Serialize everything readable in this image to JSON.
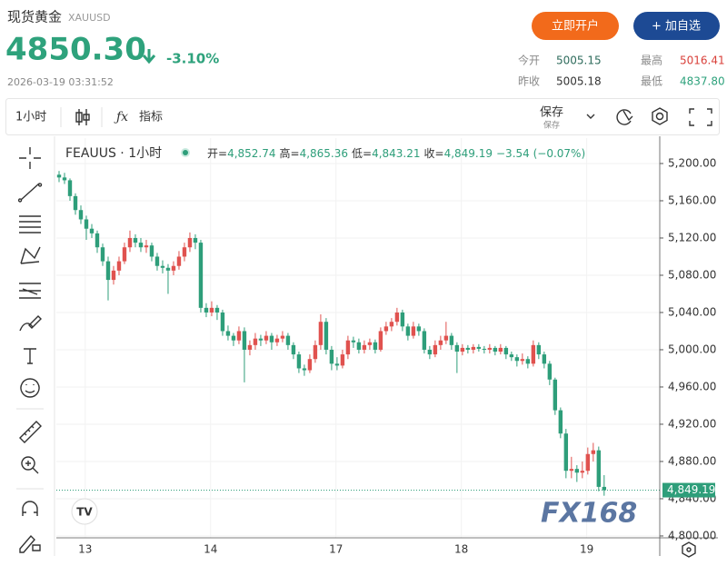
{
  "header": {
    "name": "现货黄金",
    "symbol": "XAUUSD",
    "price": "4850.30",
    "change": "-3.10%",
    "time": "2026-03-19 03:31:52",
    "buttons": [
      "立即开户",
      "+ 加自选"
    ],
    "stats": [
      {
        "label": "今开",
        "value": "5005.15"
      },
      {
        "label": "最高",
        "value": "5016.41"
      },
      {
        "label": "昨收",
        "value": "5005.18"
      },
      {
        "label": "最低",
        "value": "4837.80"
      }
    ]
  },
  "toolbar": {
    "interval": "1小时",
    "indicators": "指标",
    "save": "保存",
    "save_sub": "保存"
  },
  "chart_data": {
    "type": "candlestick",
    "title": "FEAUUS · 1小时",
    "ohlc_legend": [
      {
        "key": "开=",
        "value": "4,852.74"
      },
      {
        "key": "高=",
        "value": "4,865.36"
      },
      {
        "key": "低=",
        "value": "4,843.21"
      },
      {
        "key": "收=",
        "value": "4,849.19"
      }
    ],
    "change": "−3.54 (−0.07%)",
    "up_color": "#e0524f",
    "down_color": "#2e9e7a",
    "grid": true,
    "watermark": "FX168",
    "last_price": {
      "value": 4849.19,
      "label": "4,849.19"
    },
    "xlim": [
      -0.5,
      110.2
    ],
    "xticks": [
      {
        "value": 4.8,
        "label": "13"
      },
      {
        "value": 27.8,
        "label": "14"
      },
      {
        "value": 50.8,
        "label": "17"
      },
      {
        "value": 73.8,
        "label": "18"
      },
      {
        "value": 96.8,
        "label": "19"
      }
    ],
    "ylim": [
      4798,
      5227.3
    ],
    "yticks": [
      {
        "value": 5200,
        "label": "5,200.00"
      },
      {
        "value": 5160,
        "label": "5,160.00"
      },
      {
        "value": 5120,
        "label": "5,120.00"
      },
      {
        "value": 5080,
        "label": "5,080.00"
      },
      {
        "value": 5040,
        "label": "5,040.00"
      },
      {
        "value": 5000,
        "label": "5,000.00"
      },
      {
        "value": 4960,
        "label": "4,960.00"
      },
      {
        "value": 4920,
        "label": "4,920.00"
      },
      {
        "value": 4880,
        "label": "4,880.00"
      },
      {
        "value": 4840,
        "label": "4,840.00"
      },
      {
        "value": 4800,
        "label": "4,800.00"
      }
    ],
    "candles": [
      [
        5188,
        5192,
        5180,
        5185
      ],
      [
        5185,
        5190,
        5178,
        5182
      ],
      [
        5182,
        5184,
        5160,
        5165
      ],
      [
        5165,
        5168,
        5145,
        5150
      ],
      [
        5150,
        5155,
        5135,
        5140
      ],
      [
        5140,
        5144,
        5118,
        5130
      ],
      [
        5130,
        5135,
        5120,
        5125
      ],
      [
        5125,
        5128,
        5104,
        5110
      ],
      [
        5110,
        5114,
        5090,
        5095
      ],
      [
        5095,
        5100,
        5053,
        5075
      ],
      [
        5075,
        5090,
        5070,
        5085
      ],
      [
        5085,
        5100,
        5080,
        5095
      ],
      [
        5095,
        5115,
        5092,
        5110
      ],
      [
        5110,
        5128,
        5105,
        5120
      ],
      [
        5120,
        5124,
        5110,
        5115
      ],
      [
        5115,
        5120,
        5105,
        5110
      ],
      [
        5110,
        5118,
        5104,
        5112
      ],
      [
        5112,
        5115,
        5095,
        5100
      ],
      [
        5100,
        5104,
        5085,
        5090
      ],
      [
        5090,
        5096,
        5082,
        5088
      ],
      [
        5088,
        5092,
        5060,
        5085
      ],
      [
        5085,
        5095,
        5080,
        5090
      ],
      [
        5090,
        5106,
        5086,
        5100
      ],
      [
        5100,
        5115,
        5095,
        5110
      ],
      [
        5110,
        5126,
        5105,
        5120
      ],
      [
        5120,
        5124,
        5108,
        5115
      ],
      [
        5115,
        5118,
        5040,
        5045
      ],
      [
        5045,
        5050,
        5035,
        5040
      ],
      [
        5040,
        5052,
        5036,
        5045
      ],
      [
        5045,
        5048,
        5032,
        5040
      ],
      [
        5040,
        5043,
        5015,
        5020
      ],
      [
        5020,
        5026,
        5010,
        5015
      ],
      [
        5015,
        5018,
        5004,
        5010
      ],
      [
        5010,
        5025,
        5006,
        5020
      ],
      [
        5020,
        5024,
        4965,
        5000
      ],
      [
        5000,
        5010,
        4994,
        5005
      ],
      [
        5005,
        5018,
        5000,
        5012
      ],
      [
        5012,
        5016,
        5004,
        5010
      ],
      [
        5010,
        5020,
        5006,
        5015
      ],
      [
        5015,
        5018,
        5000,
        5008
      ],
      [
        5008,
        5016,
        5004,
        5012
      ],
      [
        5012,
        5020,
        5008,
        5015
      ],
      [
        5015,
        5018,
        5000,
        5005
      ],
      [
        5005,
        5008,
        4990,
        4995
      ],
      [
        4995,
        4998,
        4975,
        4980
      ],
      [
        4980,
        4984,
        4972,
        4978
      ],
      [
        4978,
        4995,
        4975,
        4990
      ],
      [
        4990,
        5010,
        4986,
        5005
      ],
      [
        5005,
        5038,
        5000,
        5030
      ],
      [
        5030,
        5034,
        4995,
        5000
      ],
      [
        5000,
        5004,
        4978,
        4985
      ],
      [
        4985,
        4992,
        4978,
        4983
      ],
      [
        4983,
        5000,
        4980,
        4995
      ],
      [
        4995,
        5015,
        4990,
        5010
      ],
      [
        5010,
        5014,
        5002,
        5008
      ],
      [
        5008,
        5012,
        4996,
        5000
      ],
      [
        5000,
        5010,
        4996,
        5005
      ],
      [
        5005,
        5012,
        5000,
        5008
      ],
      [
        5008,
        5011,
        4996,
        5000
      ],
      [
        5000,
        5024,
        4998,
        5020
      ],
      [
        5020,
        5030,
        5016,
        5025
      ],
      [
        5025,
        5034,
        5020,
        5030
      ],
      [
        5030,
        5045,
        5026,
        5040
      ],
      [
        5040,
        5043,
        5020,
        5025
      ],
      [
        5025,
        5028,
        5010,
        5015
      ],
      [
        5015,
        5030,
        5012,
        5025
      ],
      [
        5025,
        5028,
        5015,
        5020
      ],
      [
        5020,
        5023,
        4996,
        5000
      ],
      [
        5000,
        5004,
        4990,
        4995
      ],
      [
        4995,
        5010,
        4992,
        5005
      ],
      [
        5005,
        5015,
        5000,
        5010
      ],
      [
        5010,
        5030,
        5006,
        5015
      ],
      [
        5015,
        5018,
        5000,
        5005
      ],
      [
        5005,
        5008,
        4975,
        4998
      ],
      [
        4998,
        5006,
        4994,
        5002
      ],
      [
        5002,
        5005,
        4996,
        5000
      ],
      [
        5000,
        5006,
        4996,
        5003
      ],
      [
        5003,
        5006,
        4998,
        5001
      ],
      [
        5001,
        5004,
        4996,
        5000
      ],
      [
        5000,
        5006,
        4996,
        5002
      ],
      [
        5002,
        5004,
        4994,
        4998
      ],
      [
        4998,
        5006,
        4995,
        5002
      ],
      [
        5002,
        5004,
        4990,
        4995
      ],
      [
        4995,
        4998,
        4988,
        4992
      ],
      [
        4992,
        4995,
        4982,
        4988
      ],
      [
        4988,
        4996,
        4984,
        4990
      ],
      [
        4990,
        4993,
        4980,
        4985
      ],
      [
        4985,
        5010,
        4982,
        5005
      ],
      [
        5005,
        5008,
        4990,
        4995
      ],
      [
        4995,
        4998,
        4980,
        4985
      ],
      [
        4985,
        4988,
        4962,
        4968
      ],
      [
        4968,
        4970,
        4930,
        4935
      ],
      [
        4935,
        4938,
        4905,
        4910
      ],
      [
        4910,
        4915,
        4862,
        4870
      ],
      [
        4870,
        4885,
        4862,
        4872
      ],
      [
        4872,
        4876,
        4858,
        4868
      ],
      [
        4868,
        4880,
        4862,
        4870
      ],
      [
        4870,
        4895,
        4866,
        4888
      ],
      [
        4888,
        4900,
        4880,
        4892
      ],
      [
        4892,
        4896,
        4848,
        4852.74
      ],
      [
        4852.74,
        4865.36,
        4843.21,
        4849.19
      ]
    ]
  }
}
